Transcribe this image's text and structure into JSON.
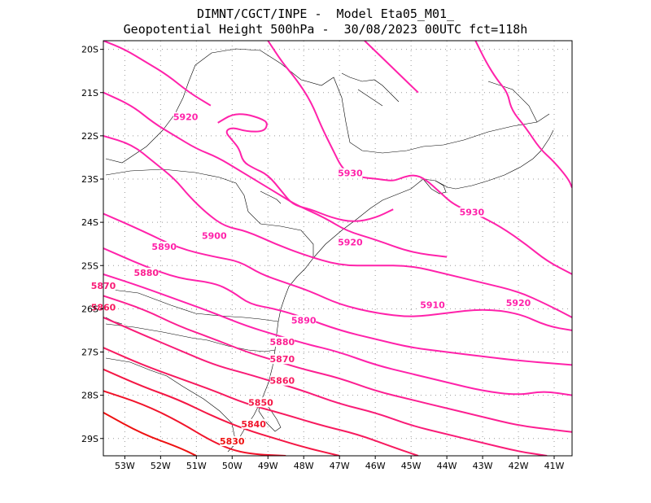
{
  "header": {
    "line1": "DIMNT/CGCT/INPE -  Model Eta05_M01_",
    "line2": "Geopotential Height 500hPa -  30/08/2023 00UTC fct=118h"
  },
  "axes": {
    "lat_labels": [
      "20S",
      "21S",
      "22S",
      "23S",
      "24S",
      "25S",
      "26S",
      "27S",
      "28S",
      "29S"
    ],
    "lon_labels": [
      "53W",
      "52W",
      "51W",
      "50W",
      "49W",
      "48W",
      "47W",
      "46W",
      "45W",
      "44W",
      "43W",
      "42W",
      "41W"
    ]
  },
  "colors": {
    "high": "#ff22aa",
    "low": "#ee1111",
    "coast": "#000000",
    "grid": "#999999"
  },
  "chart_data": {
    "type": "contour",
    "variable": "Geopotential Height 500hPa",
    "lon_range": [
      -53.6,
      -40.5
    ],
    "lat_range": [
      -29.4,
      -19.8
    ],
    "grid": true,
    "contours": [
      {
        "level": 5830,
        "points": [
          [
            -53.6,
            -28.4
          ],
          [
            -52.5,
            -28.9
          ],
          [
            -51.5,
            -29.2
          ],
          [
            -51.0,
            -29.4
          ]
        ]
      },
      {
        "level": 5840,
        "points": [
          [
            -53.6,
            -27.9
          ],
          [
            -52.5,
            -28.2
          ],
          [
            -51.5,
            -28.6
          ],
          [
            -50.5,
            -29.1
          ],
          [
            -49.7,
            -29.35
          ],
          [
            -48.5,
            -29.4
          ]
        ]
      },
      {
        "level": 5850,
        "points": [
          [
            -53.6,
            -27.4
          ],
          [
            -52.5,
            -27.8
          ],
          [
            -51.5,
            -28.1
          ],
          [
            -50.5,
            -28.5
          ],
          [
            -49.6,
            -28.8
          ],
          [
            -48.8,
            -29.0
          ],
          [
            -48.0,
            -29.2
          ],
          [
            -47.0,
            -29.4
          ]
        ]
      },
      {
        "level": 5860,
        "points": [
          [
            -53.6,
            -26.9
          ],
          [
            -52.5,
            -27.3
          ],
          [
            -51.5,
            -27.6
          ],
          [
            -50.5,
            -27.9
          ],
          [
            -49.6,
            -28.2
          ],
          [
            -48.7,
            -28.4
          ],
          [
            -47.5,
            -28.7
          ],
          [
            -46.5,
            -28.9
          ],
          [
            -45.5,
            -29.2
          ],
          [
            -44.8,
            -29.4
          ]
        ]
      },
      {
        "level": 5870,
        "points": [
          [
            -53.6,
            -26.2
          ],
          [
            -52.5,
            -26.6
          ],
          [
            -51.5,
            -26.95
          ],
          [
            -50.5,
            -27.3
          ],
          [
            -49.6,
            -27.5
          ],
          [
            -48.8,
            -27.7
          ],
          [
            -48.0,
            -27.9
          ],
          [
            -47.0,
            -28.2
          ],
          [
            -46.0,
            -28.4
          ],
          [
            -45.0,
            -28.7
          ],
          [
            -44.0,
            -28.9
          ],
          [
            -43.0,
            -29.1
          ],
          [
            -42.0,
            -29.3
          ],
          [
            -41.2,
            -29.4
          ]
        ]
      },
      {
        "level": 5880,
        "points": [
          [
            -53.6,
            -25.7
          ],
          [
            -52.5,
            -26.0
          ],
          [
            -51.5,
            -26.4
          ],
          [
            -50.5,
            -26.7
          ],
          [
            -49.6,
            -27.0
          ],
          [
            -48.8,
            -27.2
          ],
          [
            -48.0,
            -27.4
          ],
          [
            -47.0,
            -27.6
          ],
          [
            -46.0,
            -27.9
          ],
          [
            -45.0,
            -28.1
          ],
          [
            -44.0,
            -28.3
          ],
          [
            -43.0,
            -28.5
          ],
          [
            -42.0,
            -28.7
          ],
          [
            -41.0,
            -28.8
          ],
          [
            -40.5,
            -28.85
          ]
        ]
      },
      {
        "level": 5890,
        "points": [
          [
            -53.6,
            -25.2
          ],
          [
            -52.5,
            -25.5
          ],
          [
            -51.5,
            -25.8
          ],
          [
            -50.5,
            -26.1
          ],
          [
            -49.6,
            -26.4
          ],
          [
            -48.8,
            -26.6
          ],
          [
            -48.0,
            -26.8
          ],
          [
            -47.0,
            -27.0
          ],
          [
            -46.0,
            -27.3
          ],
          [
            -45.0,
            -27.5
          ],
          [
            -44.0,
            -27.7
          ],
          [
            -43.0,
            -27.9
          ],
          [
            -42.0,
            -28.0
          ],
          [
            -41.3,
            -27.9
          ],
          [
            -40.5,
            -28.0
          ]
        ]
      },
      {
        "level": 5900,
        "points": [
          [
            -53.6,
            -24.6
          ],
          [
            -52.5,
            -25.0
          ],
          [
            -51.5,
            -25.3
          ],
          [
            -50.5,
            -25.4
          ],
          [
            -50.0,
            -25.6
          ],
          [
            -49.5,
            -25.9
          ],
          [
            -48.8,
            -26.0
          ],
          [
            -48.0,
            -26.2
          ],
          [
            -47.0,
            -26.5
          ],
          [
            -46.0,
            -26.7
          ],
          [
            -45.0,
            -26.9
          ],
          [
            -44.0,
            -27.0
          ],
          [
            -43.0,
            -27.1
          ],
          [
            -42.0,
            -27.2
          ],
          [
            -40.5,
            -27.3
          ]
        ]
      },
      {
        "level": 5910,
        "points": [
          [
            -53.6,
            -23.8
          ],
          [
            -52.5,
            -24.2
          ],
          [
            -51.5,
            -24.6
          ],
          [
            -50.5,
            -24.8
          ],
          [
            -49.8,
            -24.9
          ],
          [
            -49.2,
            -25.2
          ],
          [
            -48.5,
            -25.4
          ],
          [
            -47.8,
            -25.6
          ],
          [
            -47.0,
            -25.9
          ],
          [
            -46.0,
            -26.1
          ],
          [
            -45.0,
            -26.2
          ],
          [
            -44.0,
            -26.1
          ],
          [
            -43.0,
            -26.0
          ],
          [
            -42.0,
            -26.1
          ],
          [
            -41.2,
            -26.4
          ],
          [
            -40.5,
            -26.5
          ]
        ]
      },
      {
        "level": 5920,
        "points": [
          [
            -53.6,
            -22.0
          ],
          [
            -52.8,
            -22.2
          ],
          [
            -52.2,
            -22.6
          ],
          [
            -51.6,
            -23.0
          ],
          [
            -51.2,
            -23.4
          ],
          [
            -50.7,
            -23.8
          ],
          [
            -50.2,
            -24.1
          ],
          [
            -49.6,
            -24.2
          ],
          [
            -48.8,
            -24.5
          ],
          [
            -48.0,
            -24.75
          ],
          [
            -47.0,
            -25.0
          ],
          [
            -46.0,
            -25.0
          ],
          [
            -45.0,
            -25.0
          ],
          [
            -44.0,
            -25.2
          ],
          [
            -43.0,
            -25.4
          ],
          [
            -42.0,
            -25.6
          ],
          [
            -41.2,
            -25.9
          ],
          [
            -40.5,
            -26.2
          ]
        ]
      },
      {
        "level": 5920,
        "points": [
          [
            -50.4,
            -21.7
          ],
          [
            -50.0,
            -21.5
          ],
          [
            -49.6,
            -21.5
          ],
          [
            -49.2,
            -21.6
          ],
          [
            -49.0,
            -21.7
          ],
          [
            -49.1,
            -21.9
          ],
          [
            -49.6,
            -21.9
          ],
          [
            -50.0,
            -21.8
          ],
          [
            -50.2,
            -21.9
          ],
          [
            -50.0,
            -22.1
          ],
          [
            -49.8,
            -22.3
          ],
          [
            -49.7,
            -22.6
          ],
          [
            -49.4,
            -22.75
          ],
          [
            -49.0,
            -22.9
          ],
          [
            -48.6,
            -23.3
          ],
          [
            -48.3,
            -23.6
          ],
          [
            -47.8,
            -23.7
          ],
          [
            -47.2,
            -23.9
          ],
          [
            -46.6,
            -24.0
          ],
          [
            -46.0,
            -23.9
          ],
          [
            -45.5,
            -23.7
          ]
        ]
      },
      {
        "level": 5930,
        "points": [
          [
            -53.6,
            -21.0
          ],
          [
            -52.8,
            -21.3
          ],
          [
            -52.2,
            -21.7
          ],
          [
            -51.6,
            -22.0
          ],
          [
            -51.0,
            -22.3
          ],
          [
            -50.4,
            -22.5
          ],
          [
            -49.8,
            -22.8
          ],
          [
            -49.2,
            -23.1
          ],
          [
            -48.6,
            -23.4
          ],
          [
            -48.2,
            -23.6
          ],
          [
            -47.4,
            -23.9
          ],
          [
            -46.8,
            -24.2
          ],
          [
            -46.0,
            -24.4
          ],
          [
            -45.0,
            -24.7
          ],
          [
            -44.0,
            -24.8
          ]
        ]
      },
      {
        "level": 5930,
        "points": [
          [
            -53.6,
            -19.8
          ],
          [
            -53.0,
            -20.0
          ],
          [
            -52.4,
            -20.3
          ],
          [
            -51.8,
            -20.6
          ],
          [
            -51.2,
            -21.0
          ],
          [
            -50.6,
            -21.3
          ]
        ]
      },
      {
        "level": 5930,
        "points": [
          [
            -49.0,
            -19.8
          ],
          [
            -48.6,
            -20.3
          ],
          [
            -48.2,
            -20.7
          ],
          [
            -47.8,
            -21.2
          ],
          [
            -47.5,
            -21.8
          ],
          [
            -47.2,
            -22.3
          ],
          [
            -46.9,
            -22.8
          ],
          [
            -46.5,
            -22.95
          ],
          [
            -45.9,
            -23.0
          ],
          [
            -45.5,
            -23.05
          ],
          [
            -45.2,
            -22.95
          ],
          [
            -44.9,
            -22.9
          ],
          [
            -44.6,
            -23.0
          ],
          [
            -44.2,
            -23.3
          ],
          [
            -43.8,
            -23.6
          ],
          [
            -43.2,
            -23.8
          ],
          [
            -42.5,
            -24.1
          ],
          [
            -41.8,
            -24.5
          ],
          [
            -41.2,
            -24.9
          ],
          [
            -40.5,
            -25.2
          ]
        ]
      },
      {
        "level": 5930,
        "points": [
          [
            -46.3,
            -19.8
          ],
          [
            -45.8,
            -20.2
          ],
          [
            -45.3,
            -20.6
          ],
          [
            -44.8,
            -21.0
          ]
        ]
      },
      {
        "level": 5930,
        "points": [
          [
            -43.2,
            -19.8
          ],
          [
            -42.9,
            -20.3
          ],
          [
            -42.6,
            -20.7
          ],
          [
            -42.3,
            -21.0
          ],
          [
            -42.2,
            -21.4
          ],
          [
            -41.8,
            -21.8
          ],
          [
            -41.4,
            -22.3
          ],
          [
            -41.0,
            -22.6
          ],
          [
            -40.6,
            -23.0
          ],
          [
            -40.5,
            -23.2
          ]
        ]
      }
    ],
    "labels": [
      {
        "text": "5830",
        "lon": -50.0,
        "lat": -29.1,
        "level": 5830
      },
      {
        "text": "5840",
        "lon": -49.4,
        "lat": -28.7,
        "level": 5840
      },
      {
        "text": "5850",
        "lon": -49.2,
        "lat": -28.2,
        "level": 5850
      },
      {
        "text": "5860",
        "lon": -48.6,
        "lat": -27.7,
        "level": 5860
      },
      {
        "text": "5870",
        "lon": -48.6,
        "lat": -27.2,
        "level": 5870
      },
      {
        "text": "5880",
        "lon": -48.6,
        "lat": -26.8,
        "level": 5880
      },
      {
        "text": "5890",
        "lon": -48.0,
        "lat": -26.3,
        "level": 5890
      },
      {
        "text": "5870",
        "lon": -53.6,
        "lat": -25.5,
        "level": 5870
      },
      {
        "text": "5860",
        "lon": -53.6,
        "lat": -26.0,
        "level": 5860
      },
      {
        "text": "5880",
        "lon": -52.4,
        "lat": -25.2,
        "level": 5880
      },
      {
        "text": "5890",
        "lon": -51.9,
        "lat": -24.6,
        "level": 5890
      },
      {
        "text": "5900",
        "lon": -50.5,
        "lat": -24.35,
        "level": 5900
      },
      {
        "text": "5920",
        "lon": -51.3,
        "lat": -21.6,
        "level": 5920
      },
      {
        "text": "5930",
        "lon": -46.7,
        "lat": -22.9,
        "level": 5930
      },
      {
        "text": "5920",
        "lon": -46.7,
        "lat": -24.5,
        "level": 5920
      },
      {
        "text": "5930",
        "lon": -43.3,
        "lat": -23.8,
        "level": 5930
      },
      {
        "text": "5910",
        "lon": -44.4,
        "lat": -25.95,
        "level": 5910
      },
      {
        "text": "5920",
        "lon": -42.0,
        "lat": -25.9,
        "level": 5920
      }
    ]
  }
}
